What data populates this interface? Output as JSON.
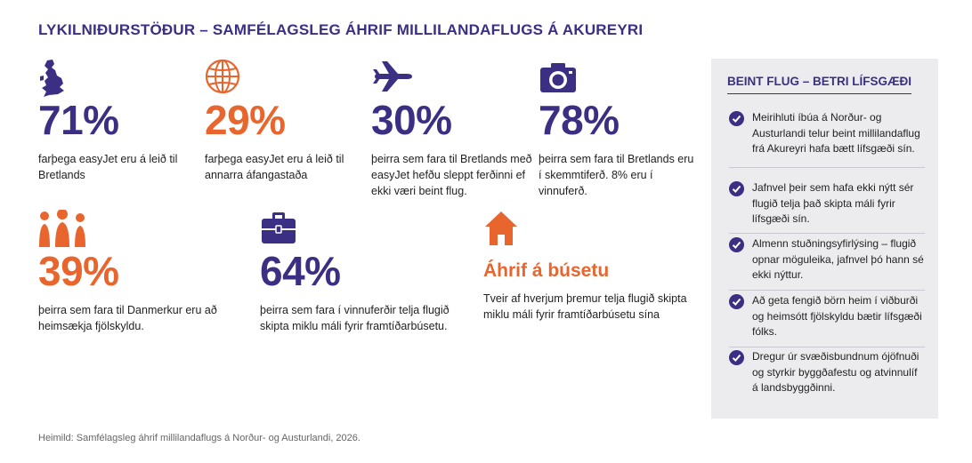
{
  "title": "LYKILNIÐURSTÖÐUR – SAMFÉLAGSLEG ÁHRIF MILLILANDAFLUGS Á AKUREYRI",
  "colors": {
    "purple": "#3b2f84",
    "orange": "#e8652d",
    "panel_bg": "#ececef"
  },
  "stats": [
    {
      "icon": "map-of-britain-icon",
      "value": "71%",
      "desc": "farþega easyJet eru á leið til Bretlands"
    },
    {
      "icon": "globe-icon",
      "value": "29%",
      "desc": "farþega easyJet eru á leið til annarra áfangastaða"
    },
    {
      "icon": "airplane-icon",
      "value": "30%",
      "desc": "þeirra sem fara til Bretlands með easyJet hefðu sleppt ferðinni ef ekki væri beint flug."
    },
    {
      "icon": "camera-icon",
      "value": "78%",
      "desc": "þeirra sem fara til Bretlands eru í skemmtiferð. 8% eru í vinnuferð."
    },
    {
      "icon": "family-icon",
      "value": "39%",
      "desc": "þeirra sem fara til Danmerkur eru að heimsækja fjölskyldu."
    },
    {
      "icon": "briefcase-icon",
      "value": "64%",
      "desc": "þeirra sem fara í vinnuferðir telja flugið skipta miklu máli fyrir framtíðarbúsetu."
    },
    {
      "icon": "house-icon",
      "heading": "Áhrif á búsetu",
      "desc": "Tveir af hverjum þremur telja flugið skipta miklu máli fyrir framtíðarbúsetu sína"
    }
  ],
  "panel": {
    "title": "BEINT FLUG – BETRI LÍFSGÆÐI",
    "items": [
      "Meirihluti íbúa á Norður- og Austurlandi telur beint millilandaflug frá Akureyri hafa bætt lífsgæði sín.",
      "Jafnvel þeir sem hafa ekki nýtt sér flugið telja það skipta máli fyrir lífsgæði sín.",
      "Almenn stuðningsyfirlýsing – flugið opnar möguleika, jafnvel þó hann sé ekki nýttur.",
      "Að geta fengið börn heim í viðburði og heimsótt fjölskyldu bætir lífsgæði fólks.",
      "Dregur úr svæðisbundnum ójöfnuði og styrkir byggðafestu og atvinnulíf á landsbyggðinni."
    ]
  },
  "source": "Heimild: Samfélagsleg áhrif millilandaflugs á Norður- og Austurlandi, 2026."
}
